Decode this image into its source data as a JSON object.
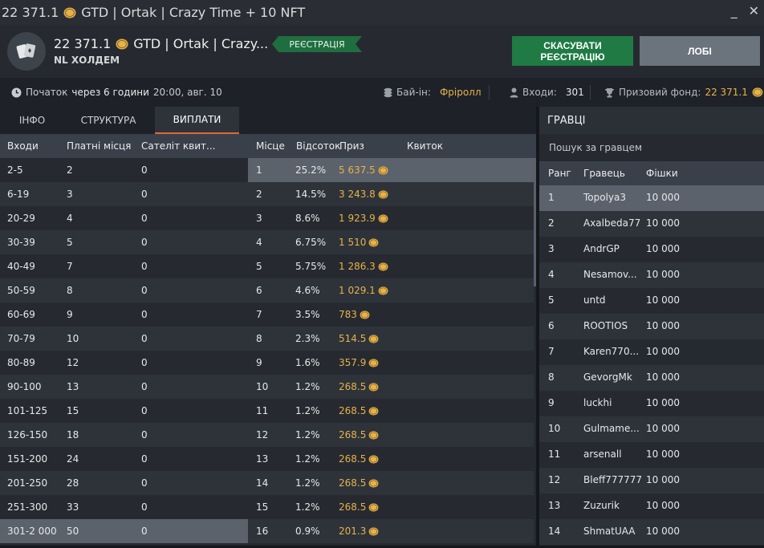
{
  "window": {
    "title_amount": "22 371.1",
    "title_rest": "GTD | Ortak | Crazy Time + 10 NFT",
    "minimize": "_",
    "close": "✕"
  },
  "header": {
    "name_amount": "22 371.1",
    "name_rest": "GTD | Ortak | Crazy...",
    "game_type": "NL ХОЛДЕМ",
    "status_badge": "РЕЄСТРАЦІЯ",
    "cancel_button": "СКАСУВАТИ РЕЄСТРАЦІЮ",
    "lobby_button": "ЛОБІ"
  },
  "info": {
    "start_label": "Початок",
    "start_in": "через 6 години",
    "start_time": "20:00, авг. 10",
    "buyin_label": "Бай-ін:",
    "buyin_value": "Фріролл",
    "entries_label": "Входи:",
    "entries_value": "301",
    "prize_label": "Призовий фонд:",
    "prize_value": "22 371.1"
  },
  "tabs": [
    {
      "label": "ІНФО",
      "active": false
    },
    {
      "label": "СТРУКТУРА",
      "active": false
    },
    {
      "label": "ВИПЛАТИ",
      "active": true
    }
  ],
  "payouts": {
    "columns": [
      "Входи",
      "Платні місця",
      "Сателіт квит...",
      "Місце",
      "Відсоток",
      "Приз",
      "Квиток"
    ],
    "entries_rows": [
      {
        "range": "2-5",
        "paid": "2",
        "sat": "0"
      },
      {
        "range": "6-19",
        "paid": "3",
        "sat": "0"
      },
      {
        "range": "20-29",
        "paid": "4",
        "sat": "0"
      },
      {
        "range": "30-39",
        "paid": "5",
        "sat": "0"
      },
      {
        "range": "40-49",
        "paid": "7",
        "sat": "0"
      },
      {
        "range": "50-59",
        "paid": "8",
        "sat": "0"
      },
      {
        "range": "60-69",
        "paid": "9",
        "sat": "0"
      },
      {
        "range": "70-79",
        "paid": "10",
        "sat": "0"
      },
      {
        "range": "80-89",
        "paid": "12",
        "sat": "0"
      },
      {
        "range": "90-100",
        "paid": "13",
        "sat": "0"
      },
      {
        "range": "101-125",
        "paid": "15",
        "sat": "0"
      },
      {
        "range": "126-150",
        "paid": "18",
        "sat": "0"
      },
      {
        "range": "151-200",
        "paid": "24",
        "sat": "0"
      },
      {
        "range": "201-250",
        "paid": "28",
        "sat": "0"
      },
      {
        "range": "251-300",
        "paid": "33",
        "sat": "0"
      },
      {
        "range": "301-2 000",
        "paid": "50",
        "sat": "0"
      }
    ],
    "place_rows": [
      {
        "place": "1",
        "pct": "25.2%",
        "prize": "5 637.5",
        "ticket": ""
      },
      {
        "place": "2",
        "pct": "14.5%",
        "prize": "3 243.8",
        "ticket": ""
      },
      {
        "place": "3",
        "pct": "8.6%",
        "prize": "1 923.9",
        "ticket": ""
      },
      {
        "place": "4",
        "pct": "6.75%",
        "prize": "1 510",
        "ticket": ""
      },
      {
        "place": "5",
        "pct": "5.75%",
        "prize": "1 286.3",
        "ticket": ""
      },
      {
        "place": "6",
        "pct": "4.6%",
        "prize": "1 029.1",
        "ticket": ""
      },
      {
        "place": "7",
        "pct": "3.5%",
        "prize": "783",
        "ticket": ""
      },
      {
        "place": "8",
        "pct": "2.3%",
        "prize": "514.5",
        "ticket": ""
      },
      {
        "place": "9",
        "pct": "1.6%",
        "prize": "357.9",
        "ticket": ""
      },
      {
        "place": "10",
        "pct": "1.2%",
        "prize": "268.5",
        "ticket": ""
      },
      {
        "place": "11",
        "pct": "1.2%",
        "prize": "268.5",
        "ticket": ""
      },
      {
        "place": "12",
        "pct": "1.2%",
        "prize": "268.5",
        "ticket": ""
      },
      {
        "place": "13",
        "pct": "1.2%",
        "prize": "268.5",
        "ticket": ""
      },
      {
        "place": "14",
        "pct": "1.2%",
        "prize": "268.5",
        "ticket": ""
      },
      {
        "place": "15",
        "pct": "1.2%",
        "prize": "268.5",
        "ticket": ""
      },
      {
        "place": "16",
        "pct": "0.9%",
        "prize": "201.3",
        "ticket": ""
      }
    ]
  },
  "players": {
    "title": "ГРАВЦІ",
    "search_placeholder": "Пошук за гравцем",
    "columns": [
      "Ранг",
      "Гравець",
      "Фішки"
    ],
    "rows": [
      {
        "rank": "1",
        "name": "Topolya3",
        "chips": "10 000"
      },
      {
        "rank": "2",
        "name": "Axalbeda77",
        "chips": "10 000"
      },
      {
        "rank": "3",
        "name": "AndrGP",
        "chips": "10 000"
      },
      {
        "rank": "4",
        "name": "Nesamov...",
        "chips": "10 000"
      },
      {
        "rank": "5",
        "name": "untd",
        "chips": "10 000"
      },
      {
        "rank": "6",
        "name": "ROOTIOS",
        "chips": "10 000"
      },
      {
        "rank": "7",
        "name": "Karen770...",
        "chips": "10 000"
      },
      {
        "rank": "8",
        "name": "GevorgMk",
        "chips": "10 000"
      },
      {
        "rank": "9",
        "name": "luckhi",
        "chips": "10 000"
      },
      {
        "rank": "10",
        "name": "Gulmame...",
        "chips": "10 000"
      },
      {
        "rank": "11",
        "name": "arsenall",
        "chips": "10 000"
      },
      {
        "rank": "12",
        "name": "Bleff777777",
        "chips": "10 000"
      },
      {
        "rank": "13",
        "name": "Zuzurik",
        "chips": "10 000"
      },
      {
        "rank": "14",
        "name": "ShmatUAA",
        "chips": "10 000"
      }
    ]
  },
  "colors": {
    "accent_gold": "#e6b24a",
    "register_green": "#1f6e3f",
    "cancel_green": "#1f7a44",
    "tab_underline": "#e0683a"
  },
  "icons": {
    "currency": "gtd-coin-icon",
    "clock": "clock-icon",
    "buyin": "chips-stack-icon",
    "entries": "user-icon",
    "prize": "trophy-icon",
    "logo": "playing-cards-icon"
  }
}
